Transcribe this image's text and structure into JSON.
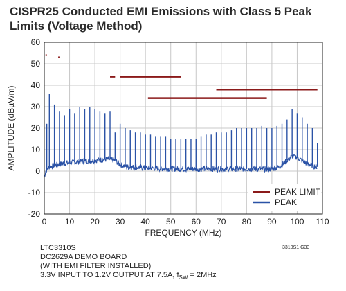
{
  "chart_data": {
    "type": "line",
    "title": "CISPR25 Conducted EMI Emissions with Class 5 Peak Limits (Voltage Method)",
    "xlabel": "FREQUENCY (MHz)",
    "ylabel": "AMPLITUDE (dBµV/m)",
    "xlim": [
      0,
      110
    ],
    "ylim": [
      -20,
      60
    ],
    "x_ticks": [
      0,
      10,
      20,
      30,
      40,
      50,
      60,
      70,
      80,
      90,
      100,
      110
    ],
    "y_ticks": [
      -20,
      -10,
      0,
      10,
      20,
      30,
      40,
      50,
      60
    ],
    "grid": true,
    "legend": "bottom-right",
    "series": [
      {
        "name": "PEAK LIMIT",
        "color": "#8b1a1a",
        "segments": [
          {
            "x": [
              0.5,
              1.0
            ],
            "y": 54
          },
          {
            "x": [
              5.5,
              6.0
            ],
            "y": 53
          },
          {
            "x": [
              26.0,
              28.0
            ],
            "y": 44
          },
          {
            "x": [
              30.0,
              54.0
            ],
            "y": 44
          },
          {
            "x": [
              41.0,
              88.0
            ],
            "y": 34
          },
          {
            "x": [
              68.0,
              108.0
            ],
            "y": 38
          }
        ]
      },
      {
        "name": "PEAK",
        "color": "#2a52a6",
        "baseline": [
          [
            0,
            -3
          ],
          [
            0.5,
            0
          ],
          [
            2,
            2
          ],
          [
            5,
            3
          ],
          [
            10,
            4
          ],
          [
            15,
            4.5
          ],
          [
            20,
            5
          ],
          [
            25,
            5.5
          ],
          [
            28,
            5
          ],
          [
            30,
            3
          ],
          [
            33,
            2
          ],
          [
            40,
            1.5
          ],
          [
            50,
            1
          ],
          [
            60,
            1
          ],
          [
            70,
            1
          ],
          [
            80,
            1
          ],
          [
            90,
            1
          ],
          [
            93,
            2
          ],
          [
            96,
            5
          ],
          [
            98,
            7
          ],
          [
            100,
            6.5
          ],
          [
            103,
            4
          ],
          [
            106,
            2.5
          ],
          [
            108,
            2
          ]
        ],
        "spikes": [
          [
            1,
            22
          ],
          [
            2,
            36
          ],
          [
            4,
            31
          ],
          [
            6,
            28
          ],
          [
            8,
            26
          ],
          [
            10,
            29
          ],
          [
            12,
            27
          ],
          [
            14,
            30
          ],
          [
            16,
            29
          ],
          [
            18,
            30
          ],
          [
            20,
            29
          ],
          [
            22,
            28
          ],
          [
            24,
            27
          ],
          [
            26,
            28
          ],
          [
            28,
            18
          ],
          [
            30,
            22
          ],
          [
            32,
            20
          ],
          [
            34,
            19
          ],
          [
            36,
            18
          ],
          [
            38,
            18
          ],
          [
            40,
            17
          ],
          [
            42,
            17
          ],
          [
            44,
            16
          ],
          [
            46,
            16
          ],
          [
            48,
            16
          ],
          [
            50,
            15
          ],
          [
            52,
            15
          ],
          [
            54,
            15
          ],
          [
            56,
            15
          ],
          [
            58,
            15
          ],
          [
            60,
            15
          ],
          [
            62,
            16
          ],
          [
            64,
            17
          ],
          [
            66,
            17
          ],
          [
            68,
            18
          ],
          [
            70,
            18
          ],
          [
            72,
            18
          ],
          [
            74,
            19
          ],
          [
            76,
            20
          ],
          [
            78,
            20
          ],
          [
            80,
            20
          ],
          [
            82,
            20
          ],
          [
            84,
            20
          ],
          [
            86,
            21
          ],
          [
            88,
            20
          ],
          [
            90,
            20
          ],
          [
            92,
            21
          ],
          [
            94,
            22
          ],
          [
            96,
            24
          ],
          [
            98,
            29
          ],
          [
            100,
            27
          ],
          [
            102,
            25
          ],
          [
            104,
            22
          ],
          [
            106,
            20
          ],
          [
            108,
            13
          ]
        ]
      }
    ]
  },
  "footnote_lines": [
    "LTC3310S",
    "DC2629A DEMO BOARD",
    "(WITH EMI FILTER INSTALLED)"
  ],
  "footnote_last_prefix": "3.3V INPUT TO 1.2V OUTPUT AT 7.5A, f",
  "footnote_last_sub": "SW",
  "footnote_last_suffix": " = 2MHz",
  "figure_code": "3310S1 G33"
}
